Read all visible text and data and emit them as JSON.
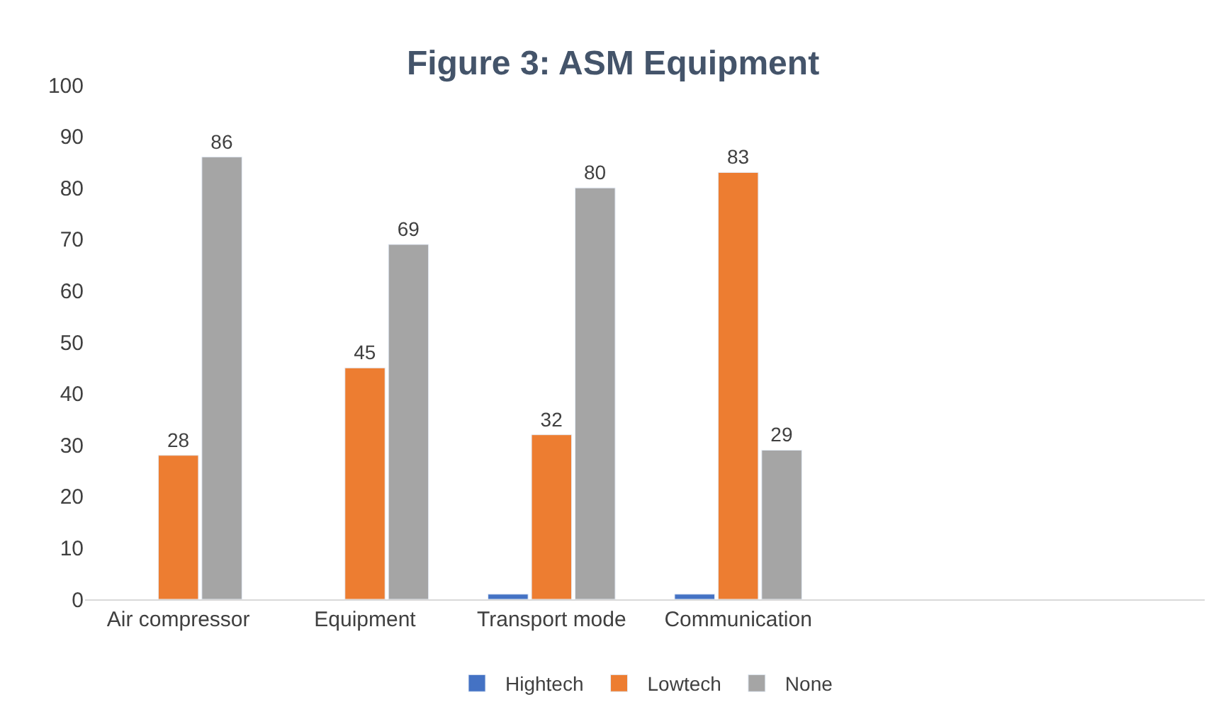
{
  "chart_data": {
    "type": "bar",
    "title": "Figure 3: ASM Equipment",
    "categories": [
      "Air compressor",
      "Equipment",
      "Transport mode",
      "Communication",
      null,
      null
    ],
    "series": [
      {
        "name": "Hightech",
        "color": "#4472c4",
        "values": [
          null,
          null,
          1,
          1,
          null,
          null
        ],
        "value_labels": [
          null,
          null,
          null,
          null,
          null,
          null
        ]
      },
      {
        "name": "Lowtech",
        "color": "#ed7d31",
        "values": [
          28,
          45,
          32,
          83,
          null,
          null
        ],
        "value_labels": [
          "28",
          "45",
          "32",
          "83",
          null,
          null
        ]
      },
      {
        "name": "None",
        "color": "#a5a5a5",
        "values": [
          86,
          69,
          80,
          29,
          null,
          null
        ],
        "value_labels": [
          "86",
          "69",
          "80",
          "29",
          null,
          null
        ]
      }
    ],
    "ylim": [
      0,
      100
    ],
    "yticks": [
      0,
      10,
      20,
      30,
      40,
      50,
      60,
      70,
      80,
      90,
      100
    ],
    "legend": "bottom"
  }
}
